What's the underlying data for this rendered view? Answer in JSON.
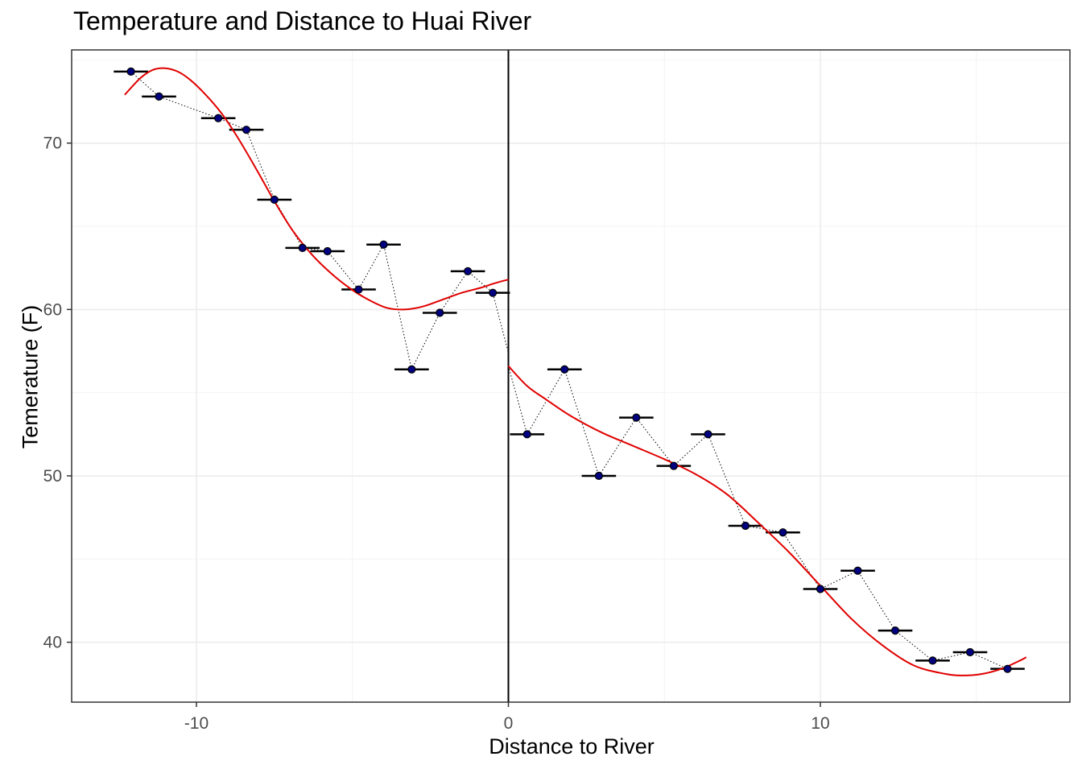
{
  "chart_data": {
    "type": "scatter",
    "title": "Temperature and Distance to Huai River",
    "xlabel": "Distance to River",
    "ylabel": "Temerature (F)",
    "xlim": [
      -14,
      18
    ],
    "ylim": [
      36.4,
      75.6
    ],
    "x_ticks": [
      -10,
      0,
      10
    ],
    "y_ticks": [
      40,
      50,
      60,
      70
    ],
    "x_tick_labels": [
      "-10",
      "0",
      "10"
    ],
    "y_tick_labels": [
      "40",
      "50",
      "60",
      "70"
    ],
    "grid": true,
    "cutoff_x": 0,
    "colors": {
      "point_fill": "#000080",
      "point_outline": "#000000",
      "fit_line": "#e00000",
      "grid_major": "#ebebeb",
      "grid_minor": "#f4f4f4"
    },
    "series": [
      {
        "type": "points",
        "x": [
          -12.1,
          -11.2,
          -9.3,
          -8.4,
          -7.5,
          -6.6,
          -5.8,
          -4.8,
          -4.0,
          -3.1,
          -2.2,
          -1.3,
          -0.5,
          0.6,
          1.8,
          2.9,
          4.1,
          5.3,
          6.4,
          7.6,
          8.8,
          10.0,
          11.2,
          12.4,
          13.6,
          14.8,
          16.0
        ],
        "y": [
          74.3,
          72.8,
          71.5,
          70.8,
          66.6,
          63.7,
          63.5,
          61.2,
          63.9,
          56.4,
          59.8,
          62.3,
          61.0,
          52.5,
          56.4,
          50.0,
          53.5,
          50.6,
          52.5,
          47.0,
          46.6,
          43.2,
          44.3,
          40.7,
          38.9,
          39.4,
          38.4
        ]
      },
      {
        "type": "line",
        "side": "left",
        "x": [
          -12.3,
          -11.8,
          -11.4,
          -11.0,
          -10.6,
          -10.2,
          -9.7,
          -9.2,
          -8.7,
          -8.1,
          -7.5,
          -6.9,
          -6.3,
          -5.7,
          -5.1,
          -4.5,
          -3.9,
          -3.3,
          -2.7,
          -2.1,
          -1.5,
          -0.9,
          -0.4,
          0.0
        ],
        "y": [
          72.9,
          73.9,
          74.4,
          74.5,
          74.3,
          73.8,
          72.9,
          71.8,
          70.4,
          68.5,
          66.5,
          64.7,
          63.3,
          62.2,
          61.3,
          60.6,
          60.1,
          60.0,
          60.2,
          60.6,
          61.0,
          61.3,
          61.6,
          61.8
        ]
      },
      {
        "type": "line",
        "side": "right",
        "x": [
          0.0,
          0.6,
          1.2,
          2.0,
          3.0,
          4.0,
          5.0,
          6.0,
          7.0,
          8.0,
          9.0,
          10.0,
          11.0,
          12.0,
          13.0,
          14.0,
          14.6,
          15.2,
          15.8,
          16.4,
          16.6
        ],
        "y": [
          56.6,
          55.4,
          54.6,
          53.6,
          52.6,
          51.8,
          51.0,
          50.1,
          48.9,
          47.2,
          45.4,
          43.4,
          41.4,
          39.8,
          38.6,
          38.1,
          38.0,
          38.1,
          38.4,
          38.9,
          39.1
        ]
      }
    ]
  }
}
